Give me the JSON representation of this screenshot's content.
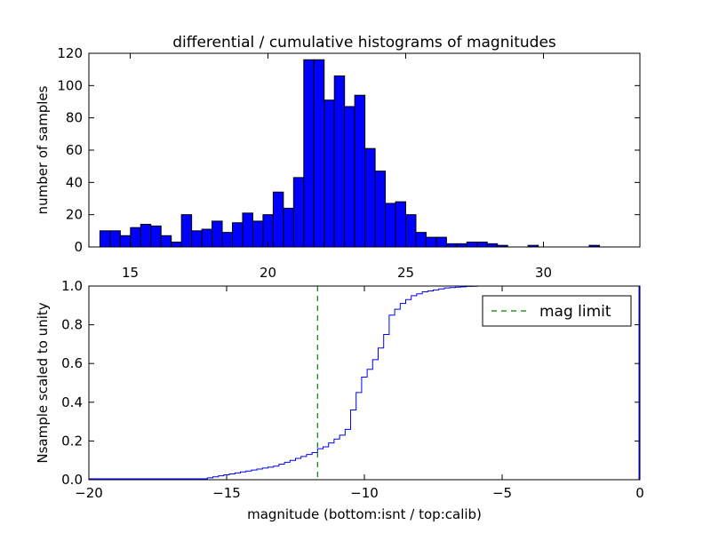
{
  "chart_data": [
    {
      "type": "bar",
      "title": "differential / cumulative histograms of magnitudes",
      "xlabel": "",
      "ylabel": "number of samples",
      "xlim": [
        13.5,
        33.5
      ],
      "ylim": [
        0,
        120
      ],
      "xticks": [
        "15",
        "20",
        "25",
        "30"
      ],
      "yticks": [
        "0",
        "20",
        "40",
        "60",
        "80",
        "100",
        "120"
      ],
      "bar_color": "#0000ff",
      "bin_start": 13.9,
      "bin_width": 0.37,
      "values": [
        10,
        10,
        7,
        12,
        14,
        13,
        7,
        3,
        20,
        10,
        11,
        16,
        9,
        15,
        21,
        16,
        20,
        34,
        24,
        43,
        116,
        116,
        91,
        106,
        87,
        94,
        61,
        47,
        27,
        28,
        20,
        9,
        6,
        6,
        2,
        2,
        3,
        3,
        2,
        1,
        0,
        0,
        1,
        0,
        0,
        0,
        0,
        0,
        1,
        0
      ]
    },
    {
      "type": "line",
      "title": "",
      "xlabel": "magnitude (bottom:isnt / top:calib)",
      "ylabel": "Nsample scaled to unity",
      "xlim": [
        -20,
        0
      ],
      "ylim": [
        0,
        1.0
      ],
      "xticks": [
        "−20",
        "−15",
        "−10",
        "−5",
        "0"
      ],
      "yticks": [
        "0.0",
        "0.2",
        "0.4",
        "0.6",
        "0.8",
        "1.0"
      ],
      "line_color": "#0000ff",
      "x": [
        -15.7,
        -15.5,
        -15.3,
        -15.1,
        -14.9,
        -14.7,
        -14.5,
        -14.3,
        -14.1,
        -13.9,
        -13.7,
        -13.5,
        -13.3,
        -13.1,
        -12.9,
        -12.7,
        -12.5,
        -12.3,
        -12.1,
        -11.9,
        -11.7,
        -11.5,
        -11.3,
        -11.1,
        -10.9,
        -10.7,
        -10.5,
        -10.3,
        -10.1,
        -9.9,
        -9.7,
        -9.5,
        -9.3,
        -9.1,
        -8.9,
        -8.7,
        -8.5,
        -8.3,
        -8.1,
        -7.9,
        -7.7,
        -7.5,
        -7.3,
        -7.1,
        -6.9,
        -6.7,
        -6.5,
        -6.3,
        -6.1,
        -5.9
      ],
      "y": [
        0.01,
        0.015,
        0.02,
        0.025,
        0.03,
        0.035,
        0.04,
        0.045,
        0.05,
        0.055,
        0.06,
        0.065,
        0.07,
        0.08,
        0.09,
        0.1,
        0.11,
        0.12,
        0.13,
        0.14,
        0.16,
        0.17,
        0.19,
        0.21,
        0.23,
        0.26,
        0.36,
        0.45,
        0.53,
        0.57,
        0.62,
        0.68,
        0.75,
        0.85,
        0.88,
        0.91,
        0.93,
        0.95,
        0.96,
        0.97,
        0.975,
        0.98,
        0.985,
        0.99,
        0.992,
        0.994,
        0.996,
        0.998,
        0.999,
        1.0
      ],
      "mag_limit": -11.7,
      "limit_color": "#008000",
      "legend": "mag limit",
      "legend_loc": "top-right"
    }
  ]
}
